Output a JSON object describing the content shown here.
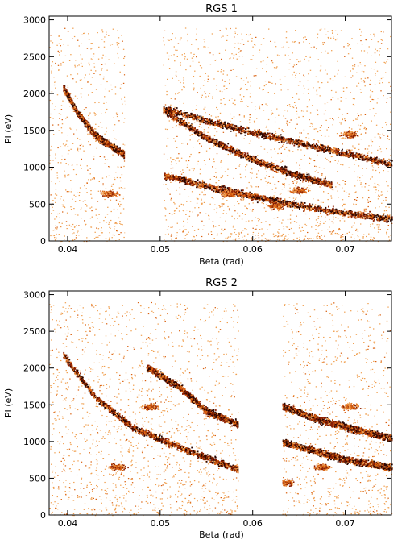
{
  "chart_data": [
    {
      "type": "heatmap",
      "title": "RGS 1",
      "xlabel": "Beta (rad)",
      "ylabel": "PI (eV)",
      "xlim": [
        0.038,
        0.075
      ],
      "ylim": [
        0,
        3050
      ],
      "xticks": [
        0.04,
        0.05,
        0.06,
        0.07
      ],
      "xtick_labels": [
        "0.04",
        "0.05",
        "0.06",
        "0.07"
      ],
      "yticks": [
        0,
        500,
        1000,
        1500,
        2000,
        2500,
        3000
      ],
      "ytick_labels": [
        "0",
        "500",
        "1000",
        "1500",
        "2000",
        "2500",
        "3000"
      ],
      "colormap": [
        "#ffffff",
        "#f0a050",
        "#d96010",
        "#8a1e02",
        "#2a0500"
      ],
      "gaps": [
        [
          0.0462,
          0.0503
        ]
      ],
      "arcs": [
        {
          "x": [
            0.0395,
            0.041,
            0.043,
            0.0462
          ],
          "y": [
            2080,
            1750,
            1430,
            1170
          ]
        },
        {
          "x": [
            0.0503,
            0.055,
            0.06,
            0.065,
            0.0685
          ],
          "y": [
            1780,
            1400,
            1110,
            890,
            770
          ]
        },
        {
          "x": [
            0.0503,
            0.056,
            0.062,
            0.068,
            0.075
          ],
          "y": [
            900,
            720,
            560,
            420,
            300
          ]
        },
        {
          "x": [
            0.0503,
            0.056,
            0.062,
            0.068,
            0.075
          ],
          "y": [
            1800,
            1600,
            1420,
            1250,
            1050
          ]
        }
      ],
      "clumps": [
        {
          "x": 0.0445,
          "y": 650
        },
        {
          "x": 0.065,
          "y": 690
        },
        {
          "x": 0.0705,
          "y": 1450
        },
        {
          "x": 0.0575,
          "y": 650
        },
        {
          "x": 0.0625,
          "y": 480
        }
      ]
    },
    {
      "type": "heatmap",
      "title": "RGS 2",
      "xlabel": "Beta (rad)",
      "ylabel": "PI (eV)",
      "xlim": [
        0.038,
        0.075
      ],
      "ylim": [
        0,
        3050
      ],
      "xticks": [
        0.04,
        0.05,
        0.06,
        0.07
      ],
      "xtick_labels": [
        "0.04",
        "0.05",
        "0.06",
        "0.07"
      ],
      "yticks": [
        0,
        500,
        1000,
        1500,
        2000,
        2500,
        3000
      ],
      "ytick_labels": [
        "0",
        "500",
        "1000",
        "1500",
        "2000",
        "2500",
        "3000"
      ],
      "colormap": [
        "#ffffff",
        "#f0a050",
        "#d96010",
        "#8a1e02",
        "#2a0500"
      ],
      "gaps": [
        [
          0.0585,
          0.0632
        ]
      ],
      "arcs": [
        {
          "x": [
            0.0395,
            0.043,
            0.047,
            0.052,
            0.0585
          ],
          "y": [
            2180,
            1600,
            1200,
            930,
            620
          ]
        },
        {
          "x": [
            0.0485,
            0.052,
            0.055,
            0.0585
          ],
          "y": [
            2020,
            1750,
            1420,
            1230
          ]
        },
        {
          "x": [
            0.0632,
            0.066,
            0.07,
            0.075
          ],
          "y": [
            1000,
            900,
            760,
            650
          ]
        },
        {
          "x": [
            0.0632,
            0.067,
            0.071,
            0.075
          ],
          "y": [
            1480,
            1310,
            1170,
            1050
          ]
        }
      ],
      "clumps": [
        {
          "x": 0.0453,
          "y": 660
        },
        {
          "x": 0.049,
          "y": 1480
        },
        {
          "x": 0.0705,
          "y": 1480
        },
        {
          "x": 0.0675,
          "y": 660
        },
        {
          "x": 0.0635,
          "y": 450
        }
      ]
    }
  ]
}
